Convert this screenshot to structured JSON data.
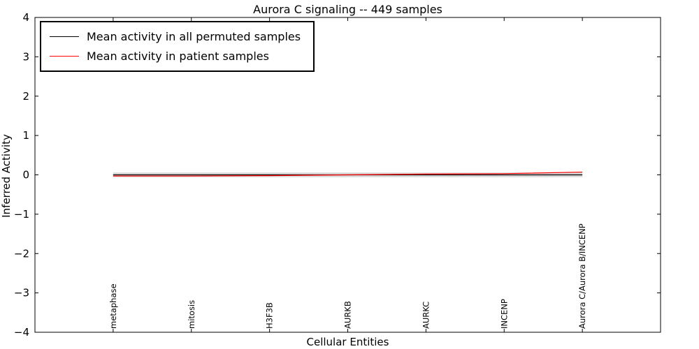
{
  "chart_data": {
    "type": "line",
    "title": "Aurora C signaling -- 449 samples",
    "xlabel": "Cellular Entities",
    "ylabel": "Inferred Activity",
    "ylim": [
      -4,
      4
    ],
    "xlim": [
      -1,
      7
    ],
    "grid": false,
    "yticks": [
      -4,
      -3,
      -2,
      -1,
      0,
      1,
      2,
      3,
      4
    ],
    "ytick_labels": [
      "−4",
      "−3",
      "−2",
      "−1",
      "0",
      "1",
      "2",
      "3",
      "4"
    ],
    "categories": [
      "metaphase",
      "mitosis",
      "H3F3B",
      "AURKB",
      "AURKC",
      "INCENP",
      "Aurora C/Aurora B/INCENP"
    ],
    "series": [
      {
        "name": "Mean activity in all permuted samples",
        "color": "#000000",
        "values": [
          0.0,
          0.0,
          0.0,
          0.0,
          0.0,
          0.0,
          0.0
        ]
      },
      {
        "name": "Mean activity in patient samples",
        "color": "#ff0000",
        "values": [
          -0.03,
          -0.03,
          -0.02,
          0.0,
          0.02,
          0.03,
          0.07
        ]
      }
    ],
    "band": {
      "center_series": 0,
      "halfwidth": [
        0.06,
        0.06,
        0.06,
        0.06,
        0.06,
        0.06,
        0.06
      ],
      "color": "#d9d9d9"
    },
    "zero_line": {
      "y": 0,
      "style": "dotted",
      "color": "#000000"
    },
    "legend": {
      "position": "upper-left"
    }
  }
}
